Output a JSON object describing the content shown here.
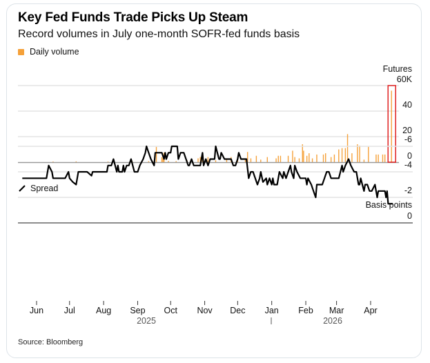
{
  "title": "Key Fed Funds Trade Picks Up Steam",
  "subtitle": "Record volumes in July one-month SOFR-fed funds basis",
  "source": "Source: Bloomberg",
  "colors": {
    "volume": "#f5a13a",
    "spread": "#000000",
    "highlight_box": "#e02020",
    "grid": "#e3e3e3"
  },
  "chart_data": [
    {
      "type": "bar",
      "legend": "Daily volume",
      "unit_label": "Futures",
      "ylim": [
        0,
        60
      ],
      "y_ticks": [
        "60K",
        "40",
        "20",
        "0"
      ],
      "y_tick_values": [
        60,
        40,
        20,
        0
      ],
      "grid": true,
      "highlight": {
        "date": "2026-04-20",
        "shape": "red-rectangle"
      },
      "bars": [
        [
          "2025-06-16",
          0.5
        ],
        [
          "2025-07-07",
          0.6
        ],
        [
          "2025-08-05",
          0.5
        ],
        [
          "2025-08-27",
          0.8
        ],
        [
          "2025-09-11",
          0.8
        ],
        [
          "2025-09-16",
          1
        ],
        [
          "2025-09-18",
          12
        ],
        [
          "2025-09-23",
          4
        ],
        [
          "2025-09-24",
          3
        ],
        [
          "2025-09-25",
          7.5
        ],
        [
          "2025-09-29",
          1
        ],
        [
          "2025-10-06",
          0.8
        ],
        [
          "2025-10-16",
          1.5
        ],
        [
          "2025-10-26",
          3
        ],
        [
          "2025-10-28",
          4
        ],
        [
          "2025-10-30",
          7
        ],
        [
          "2025-11-04",
          4
        ],
        [
          "2025-11-11",
          1.5
        ],
        [
          "2025-11-21",
          2.5
        ],
        [
          "2025-11-25",
          4
        ],
        [
          "2025-12-01",
          4
        ],
        [
          "2025-12-08",
          2
        ],
        [
          "2025-12-10",
          8
        ],
        [
          "2025-12-13",
          3
        ],
        [
          "2025-12-18",
          5
        ],
        [
          "2025-12-22",
          2
        ],
        [
          "2025-12-28",
          4
        ],
        [
          "2026-01-05",
          3
        ],
        [
          "2026-01-07",
          5
        ],
        [
          "2026-01-09",
          5
        ],
        [
          "2026-01-16",
          5
        ],
        [
          "2026-01-20",
          9
        ],
        [
          "2026-01-22",
          4
        ],
        [
          "2026-01-26",
          3
        ],
        [
          "2026-01-29",
          14
        ],
        [
          "2026-01-30",
          9
        ],
        [
          "2026-02-02",
          5
        ],
        [
          "2026-02-04",
          7
        ],
        [
          "2026-02-07",
          3
        ],
        [
          "2026-02-11",
          6
        ],
        [
          "2026-02-17",
          6
        ],
        [
          "2026-02-19",
          7
        ],
        [
          "2026-02-24",
          4
        ],
        [
          "2026-02-27",
          6
        ],
        [
          "2026-03-03",
          10
        ],
        [
          "2026-03-06",
          11
        ],
        [
          "2026-03-09",
          11
        ],
        [
          "2026-03-11",
          22
        ],
        [
          "2026-03-15",
          7
        ],
        [
          "2026-03-20",
          14
        ],
        [
          "2026-03-22",
          13
        ],
        [
          "2026-03-26",
          2
        ],
        [
          "2026-03-30",
          12
        ],
        [
          "2026-04-06",
          6
        ],
        [
          "2026-04-08",
          6
        ],
        [
          "2026-04-12",
          6
        ],
        [
          "2026-04-14",
          6
        ],
        [
          "2026-04-20",
          56
        ]
      ]
    },
    {
      "type": "line",
      "legend": "Spread",
      "unit_label": "Basis points",
      "ylim": [
        -6,
        0
      ],
      "y_ticks": [
        "0",
        "-2",
        "-4",
        "-6"
      ],
      "y_tick_values": [
        0,
        -2,
        -4,
        -6
      ],
      "grid": true,
      "x_ticks": [
        "Jun",
        "Jul",
        "Aug",
        "Sep",
        "Oct",
        "Nov",
        "Dec",
        "Jan",
        "Feb",
        "Mar",
        "Apr"
      ],
      "x_tick_dates": [
        "2025-06-01",
        "2025-07-01",
        "2025-08-01",
        "2025-09-01",
        "2025-10-01",
        "2025-11-01",
        "2025-12-01",
        "2026-01-01",
        "2026-02-01",
        "2026-03-01",
        "2026-04-01"
      ],
      "years": [
        "2025",
        "2026"
      ],
      "points": [
        [
          "2025-05-19",
          -3.5
        ],
        [
          "2025-06-10",
          -3.5
        ],
        [
          "2025-06-12",
          -4.5
        ],
        [
          "2025-06-15",
          -4
        ],
        [
          "2025-06-16",
          -3.5
        ],
        [
          "2025-06-18",
          -3.5
        ],
        [
          "2025-06-27",
          -3.5
        ],
        [
          "2025-06-30",
          -4
        ],
        [
          "2025-07-01",
          -3.5
        ],
        [
          "2025-07-04",
          -3.2
        ],
        [
          "2025-07-07",
          -3
        ],
        [
          "2025-07-09",
          -4
        ],
        [
          "2025-07-17",
          -4
        ],
        [
          "2025-07-21",
          -3.7
        ],
        [
          "2025-07-22",
          -4
        ],
        [
          "2025-08-04",
          -4
        ],
        [
          "2025-08-05",
          -4.5
        ],
        [
          "2025-08-08",
          -4.5
        ],
        [
          "2025-08-10",
          -5
        ],
        [
          "2025-08-13",
          -4
        ],
        [
          "2025-08-14",
          -4.5
        ],
        [
          "2025-08-15",
          -4
        ],
        [
          "2025-08-18",
          -4
        ],
        [
          "2025-08-19",
          -4.5
        ],
        [
          "2025-08-20",
          -4
        ],
        [
          "2025-08-22",
          -4.5
        ],
        [
          "2025-08-24",
          -4.5
        ],
        [
          "2025-08-26",
          -5
        ],
        [
          "2025-08-29",
          -4
        ],
        [
          "2025-09-01",
          -4
        ],
        [
          "2025-09-03",
          -4.5
        ],
        [
          "2025-09-06",
          -5
        ],
        [
          "2025-09-08",
          -5.5
        ],
        [
          "2025-09-09",
          -6
        ],
        [
          "2025-09-11",
          -5.5
        ],
        [
          "2025-09-13",
          -5
        ],
        [
          "2025-09-16",
          -4.5
        ],
        [
          "2025-09-17",
          -5.5
        ],
        [
          "2025-09-23",
          -5.5
        ],
        [
          "2025-09-25",
          -5
        ],
        [
          "2025-09-26",
          -5.5
        ],
        [
          "2025-09-27",
          -5
        ],
        [
          "2025-09-29",
          -5.5
        ],
        [
          "2025-10-01",
          -5.5
        ],
        [
          "2025-10-02",
          -6
        ],
        [
          "2025-10-07",
          -6
        ],
        [
          "2025-10-08",
          -5
        ],
        [
          "2025-10-10",
          -5.5
        ],
        [
          "2025-10-13",
          -5.5
        ],
        [
          "2025-10-15",
          -5
        ],
        [
          "2025-10-17",
          -4.5
        ],
        [
          "2025-10-18",
          -4.5
        ],
        [
          "2025-10-20",
          -5
        ],
        [
          "2025-10-22",
          -4.5
        ],
        [
          "2025-10-28",
          -4.5
        ],
        [
          "2025-10-30",
          -5.5
        ],
        [
          "2025-10-31",
          -4.5
        ],
        [
          "2025-11-02",
          -5
        ],
        [
          "2025-11-04",
          -4.5
        ],
        [
          "2025-11-06",
          -5
        ],
        [
          "2025-11-10",
          -5
        ],
        [
          "2025-11-11",
          -6
        ],
        [
          "2025-11-14",
          -5
        ],
        [
          "2025-11-15",
          -5
        ],
        [
          "2025-11-16",
          -5.5
        ],
        [
          "2025-11-19",
          -5
        ],
        [
          "2025-11-25",
          -5
        ],
        [
          "2025-11-27",
          -4.5
        ],
        [
          "2025-11-29",
          -4.5
        ],
        [
          "2025-12-01",
          -5
        ],
        [
          "2025-12-02",
          -5.5
        ],
        [
          "2025-12-04",
          -5
        ],
        [
          "2025-12-09",
          -5
        ],
        [
          "2025-12-11",
          -3.5
        ],
        [
          "2025-12-13",
          -4
        ],
        [
          "2025-12-15",
          -4
        ],
        [
          "2025-12-19",
          -3
        ],
        [
          "2025-12-21",
          -3.5
        ],
        [
          "2025-12-22",
          -4
        ],
        [
          "2025-12-24",
          -3.2
        ],
        [
          "2025-12-27",
          -3.5
        ],
        [
          "2025-12-28",
          -3
        ],
        [
          "2025-12-30",
          -3.5
        ],
        [
          "2026-01-01",
          -3
        ],
        [
          "2026-01-02",
          -3.5
        ],
        [
          "2026-01-03",
          -3
        ],
        [
          "2026-01-06",
          -3
        ],
        [
          "2026-01-07",
          -3.5
        ],
        [
          "2026-01-08",
          -4
        ],
        [
          "2026-01-11",
          -3.5
        ],
        [
          "2026-01-12",
          -4
        ],
        [
          "2026-01-14",
          -3.5
        ],
        [
          "2026-01-16",
          -4
        ],
        [
          "2026-01-18",
          -4.5
        ],
        [
          "2026-01-19",
          -4
        ],
        [
          "2026-01-21",
          -3.5
        ],
        [
          "2026-01-22",
          -4.5
        ],
        [
          "2026-01-24",
          -4
        ],
        [
          "2026-01-27",
          -3.5
        ],
        [
          "2026-02-01",
          -3.5
        ],
        [
          "2026-02-02",
          -3
        ],
        [
          "2026-02-03",
          -3.5
        ],
        [
          "2026-02-06",
          -3
        ],
        [
          "2026-02-08",
          -2.5
        ],
        [
          "2026-02-10",
          -2
        ],
        [
          "2026-02-11",
          -3
        ],
        [
          "2026-02-16",
          -3
        ],
        [
          "2026-02-18",
          -3.5
        ],
        [
          "2026-02-20",
          -4
        ],
        [
          "2026-02-22",
          -4
        ],
        [
          "2026-02-24",
          -3.5
        ],
        [
          "2026-03-03",
          -3.5
        ],
        [
          "2026-03-06",
          -4.5
        ],
        [
          "2026-03-07",
          -4
        ],
        [
          "2026-03-09",
          -4.5
        ],
        [
          "2026-03-12",
          -5
        ],
        [
          "2026-03-14",
          -4.5
        ],
        [
          "2026-03-17",
          -4
        ],
        [
          "2026-03-19",
          -4
        ],
        [
          "2026-03-21",
          -3
        ],
        [
          "2026-03-22",
          -3
        ],
        [
          "2026-03-23",
          -3.5
        ],
        [
          "2026-03-26",
          -2.5
        ],
        [
          "2026-03-27",
          -3
        ],
        [
          "2026-03-29",
          -3
        ],
        [
          "2026-03-31",
          -2.5
        ],
        [
          "2026-04-02",
          -2.5
        ],
        [
          "2026-04-05",
          -3
        ],
        [
          "2026-04-07",
          -2
        ],
        [
          "2026-04-08",
          -2.5
        ],
        [
          "2026-04-14",
          -2.5
        ],
        [
          "2026-04-15",
          -2
        ],
        [
          "2026-04-16",
          -2.5
        ],
        [
          "2026-04-17",
          -1.5
        ],
        [
          "2026-04-21",
          -1.5
        ]
      ]
    }
  ]
}
